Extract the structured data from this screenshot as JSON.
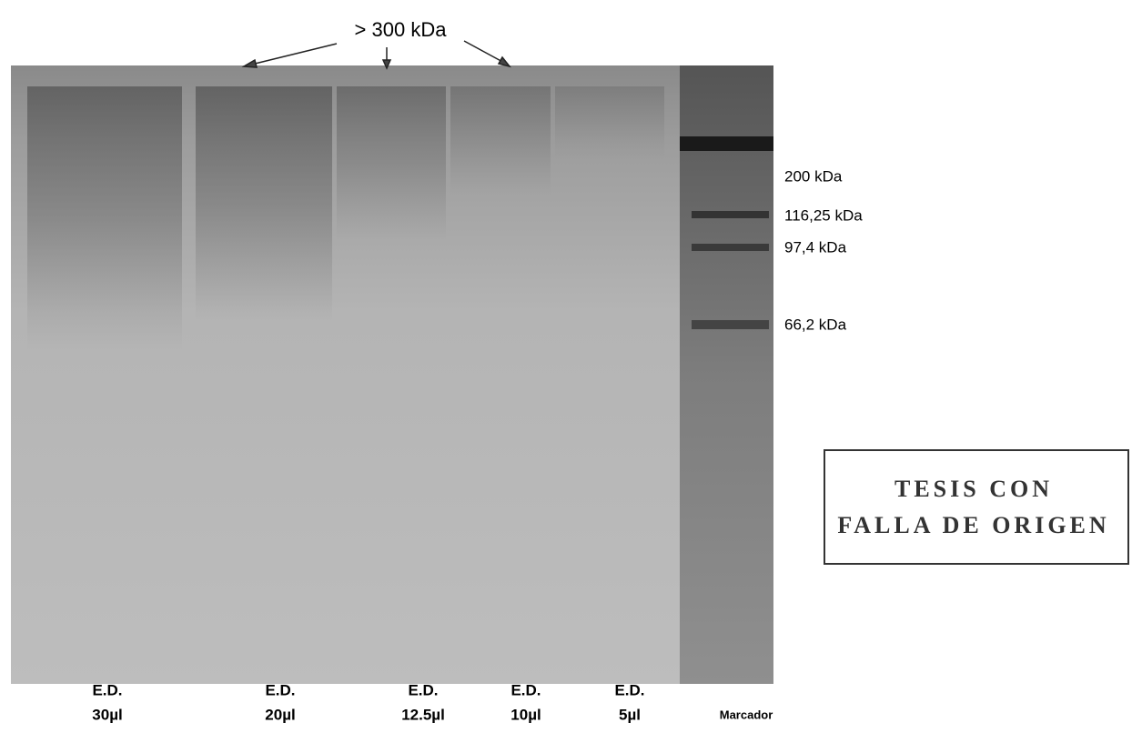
{
  "header": {
    "title": "> 300 kDa"
  },
  "markers": [
    {
      "label": "200  kDa"
    },
    {
      "label": "116,25 kDa"
    },
    {
      "label": "97,4 kDa"
    },
    {
      "label": "66,2 kDa"
    }
  ],
  "lanes": [
    {
      "line1": "E.D.",
      "line2": "30µl"
    },
    {
      "line1": "E.D.",
      "line2": "20µl"
    },
    {
      "line1": "E.D.",
      "line2": "12.5µl"
    },
    {
      "line1": "E.D.",
      "line2": "10µl"
    },
    {
      "line1": "E.D.",
      "line2": "5µl"
    }
  ],
  "marker_lane": {
    "label": "Marcador"
  },
  "stamp": {
    "lines": [
      "TESIS CON",
      "FALLA DE ORIGEN"
    ]
  }
}
